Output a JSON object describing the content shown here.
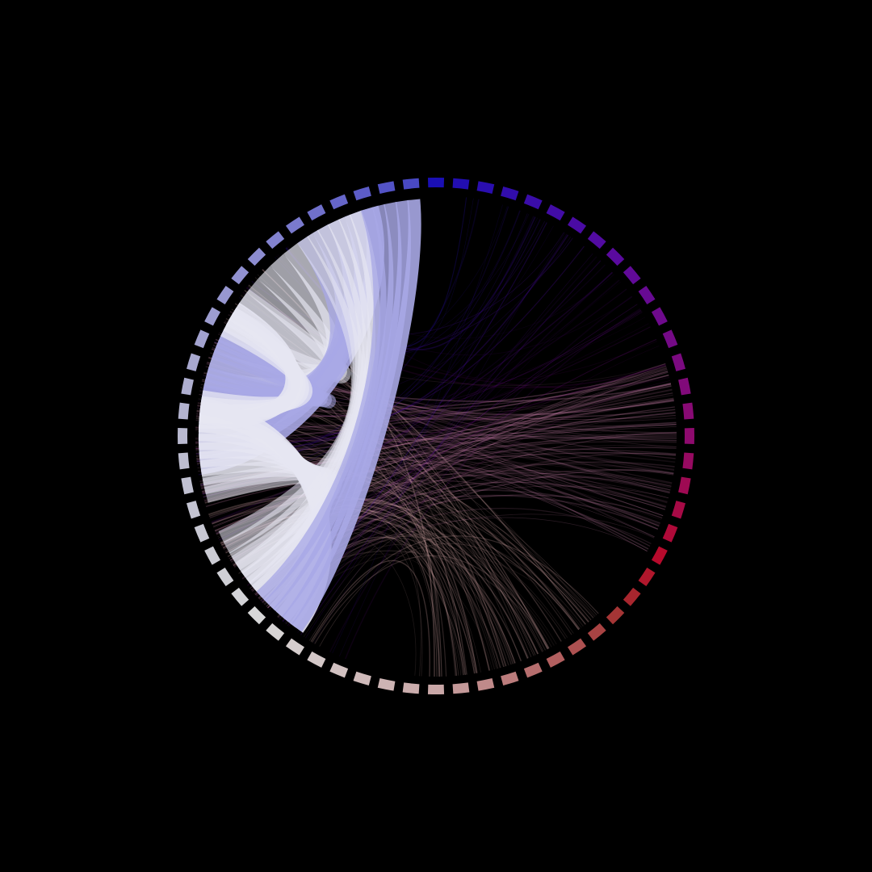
{
  "diagram": {
    "type": "chord",
    "background_color": "#000000",
    "segment_count": 64,
    "gradient_stops": [
      {
        "at": 0.0,
        "color": "#1A0FB4"
      },
      {
        "at": 0.125,
        "color": "#5A0A9E"
      },
      {
        "at": 0.25,
        "color": "#8E0A6E"
      },
      {
        "at": 0.33,
        "color": "#B80A2A"
      },
      {
        "at": 0.37,
        "color": "#A23030"
      },
      {
        "at": 0.5,
        "color": "#C9A7A7"
      },
      {
        "at": 0.62,
        "color": "#D8D8D8"
      },
      {
        "at": 0.75,
        "color": "#B9B9CF"
      },
      {
        "at": 0.88,
        "color": "#8A8AD0"
      },
      {
        "at": 1.0,
        "color": "#3F3FC2"
      }
    ],
    "ribbon_color_light": "#E6E6F2",
    "ribbon_color_lavender": "#A8A8E6",
    "fiber_color_pink": "#C77FA8",
    "fiber_color_rose": "#D7A8A8",
    "bundles": {
      "nested_arcs_per_sector": 11,
      "fiber_count": 260,
      "random_seed": 7
    }
  }
}
